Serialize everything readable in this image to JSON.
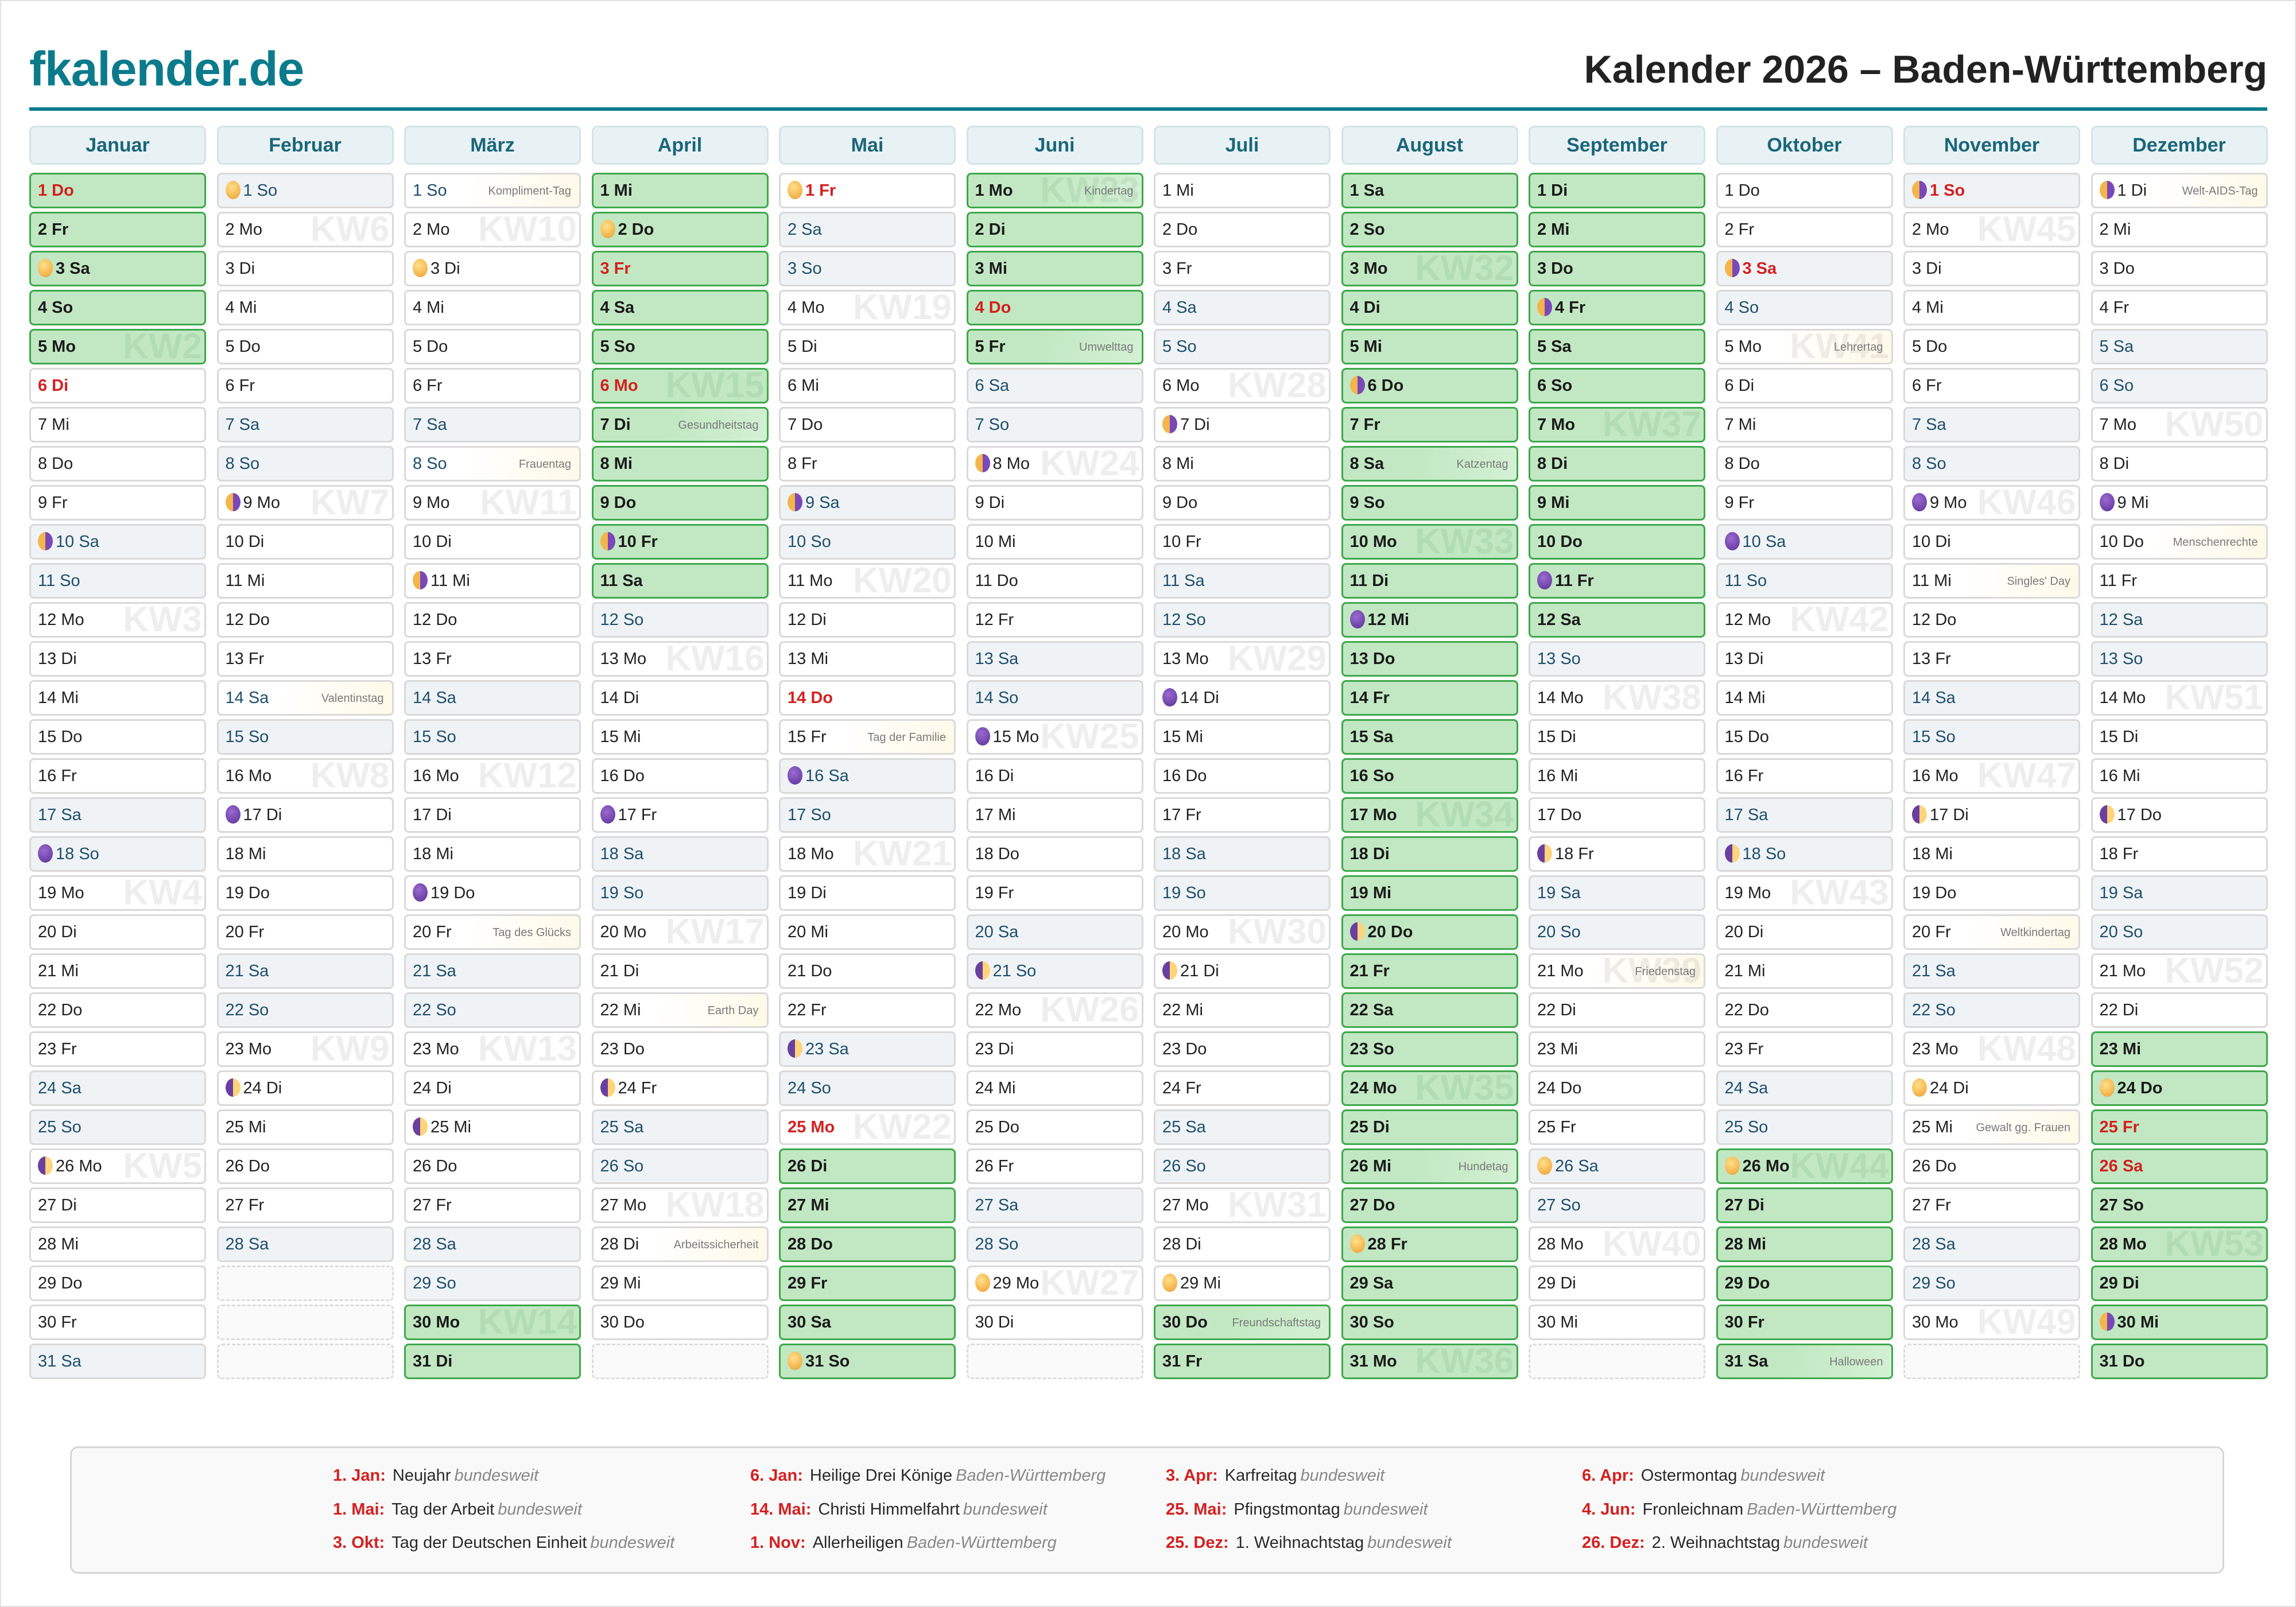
{
  "header": {
    "logo": "fkalender.de",
    "title": "Kalender 2026 – Baden-Württemberg",
    "year": 2026
  },
  "colors": {
    "brand": "#0b7b8c",
    "holiday_red": "#d42020",
    "school_holiday_green": "#c1e8c2",
    "weekend_bg": "#eff3f6"
  },
  "weekdays": [
    "Mo",
    "Di",
    "Mi",
    "Do",
    "Fr",
    "Sa",
    "So"
  ],
  "kw_prefix": "KW",
  "months": [
    {
      "name": "Januar",
      "days": 31,
      "ferien": [
        [
          1,
          5
        ]
      ],
      "feiertage": [
        1,
        6
      ],
      "moons": {
        "3": "full",
        "10": "last-quarter",
        "18": "new",
        "26": "first-quarter"
      },
      "events": {}
    },
    {
      "name": "Februar",
      "days": 28,
      "ferien": [],
      "feiertage": [],
      "moons": {
        "1": "full",
        "9": "last-quarter",
        "17": "new",
        "24": "first-quarter"
      },
      "events": {
        "14": "Valentinstag"
      }
    },
    {
      "name": "März",
      "days": 31,
      "ferien": [
        [
          30,
          31
        ]
      ],
      "feiertage": [],
      "moons": {
        "3": "full",
        "11": "last-quarter",
        "19": "new",
        "25": "first-quarter"
      },
      "events": {
        "1": "Kompliment-Tag",
        "8": "Frauentag",
        "20": "Tag des Glücks"
      }
    },
    {
      "name": "April",
      "days": 30,
      "ferien": [
        [
          1,
          11
        ]
      ],
      "feiertage": [
        3,
        6
      ],
      "moons": {
        "2": "full",
        "10": "last-quarter",
        "17": "new",
        "24": "first-quarter"
      },
      "events": {
        "7": "Gesundheitstag",
        "22": "Earth Day",
        "28": "Arbeitssicherheit"
      }
    },
    {
      "name": "Mai",
      "days": 31,
      "ferien": [
        [
          26,
          31
        ]
      ],
      "feiertage": [
        1,
        14,
        25
      ],
      "moons": {
        "1": "full",
        "9": "last-quarter",
        "16": "new",
        "23": "first-quarter",
        "31": "full"
      },
      "events": {
        "15": "Tag der Familie"
      }
    },
    {
      "name": "Juni",
      "days": 30,
      "ferien": [
        [
          1,
          5
        ]
      ],
      "feiertage": [
        4
      ],
      "moons": {
        "8": "last-quarter",
        "15": "new",
        "21": "first-quarter",
        "29": "full"
      },
      "events": {
        "1": "Kindertag",
        "5": "Umwelttag"
      }
    },
    {
      "name": "Juli",
      "days": 31,
      "ferien": [
        [
          30,
          31
        ]
      ],
      "feiertage": [],
      "moons": {
        "7": "last-quarter",
        "14": "new",
        "21": "first-quarter",
        "29": "full"
      },
      "events": {
        "30": "Freundschaftstag"
      }
    },
    {
      "name": "August",
      "days": 31,
      "ferien": [
        [
          1,
          31
        ]
      ],
      "feiertage": [],
      "moons": {
        "6": "last-quarter",
        "12": "new",
        "20": "first-quarter",
        "28": "full"
      },
      "events": {
        "8": "Katzentag",
        "26": "Hundetag"
      }
    },
    {
      "name": "September",
      "days": 30,
      "ferien": [
        [
          1,
          12
        ]
      ],
      "feiertage": [],
      "moons": {
        "4": "last-quarter",
        "11": "new",
        "18": "first-quarter",
        "26": "full"
      },
      "events": {
        "21": "Friedenstag"
      }
    },
    {
      "name": "Oktober",
      "days": 31,
      "ferien": [
        [
          26,
          31
        ]
      ],
      "feiertage": [
        3
      ],
      "moons": {
        "3": "last-quarter",
        "10": "new",
        "18": "first-quarter",
        "26": "full"
      },
      "events": {
        "5": "Lehrertag",
        "31": "Halloween"
      }
    },
    {
      "name": "November",
      "days": 30,
      "ferien": [],
      "feiertage": [
        1
      ],
      "moons": {
        "1": "last-quarter",
        "9": "new",
        "17": "first-quarter",
        "24": "full"
      },
      "events": {
        "11": "Singles' Day",
        "20": "Weltkindertag",
        "25": "Gewalt gg. Frauen"
      }
    },
    {
      "name": "Dezember",
      "days": 31,
      "ferien": [
        [
          23,
          31
        ]
      ],
      "feiertage": [
        25,
        26
      ],
      "moons": {
        "1": "last-quarter",
        "9": "new",
        "17": "first-quarter",
        "24": "full",
        "30": "last-quarter"
      },
      "events": {
        "1": "Welt-AIDS-Tag",
        "10": "Menschenrechte"
      }
    }
  ],
  "legend": [
    {
      "date": "1. Jan:",
      "name": "Neujahr",
      "region": "bundesweit"
    },
    {
      "date": "6. Jan:",
      "name": "Heilige Drei Könige",
      "region": "Baden-Württemberg"
    },
    {
      "date": "3. Apr:",
      "name": "Karfreitag",
      "region": "bundesweit"
    },
    {
      "date": "6. Apr:",
      "name": "Ostermontag",
      "region": "bundesweit"
    },
    {
      "date": "1. Mai:",
      "name": "Tag der Arbeit",
      "region": "bundesweit"
    },
    {
      "date": "14. Mai:",
      "name": "Christi Himmelfahrt",
      "region": "bundesweit"
    },
    {
      "date": "25. Mai:",
      "name": "Pfingstmontag",
      "region": "bundesweit"
    },
    {
      "date": "4. Jun:",
      "name": "Fronleichnam",
      "region": "Baden-Württemberg"
    },
    {
      "date": "3. Okt:",
      "name": "Tag der Deutschen Einheit",
      "region": "bundesweit"
    },
    {
      "date": "1. Nov:",
      "name": "Allerheiligen",
      "region": "Baden-Württemberg"
    },
    {
      "date": "25. Dez:",
      "name": "1. Weihnachtstag",
      "region": "bundesweit"
    },
    {
      "date": "26. Dez:",
      "name": "2. Weihnachtstag",
      "region": "bundesweit"
    }
  ]
}
